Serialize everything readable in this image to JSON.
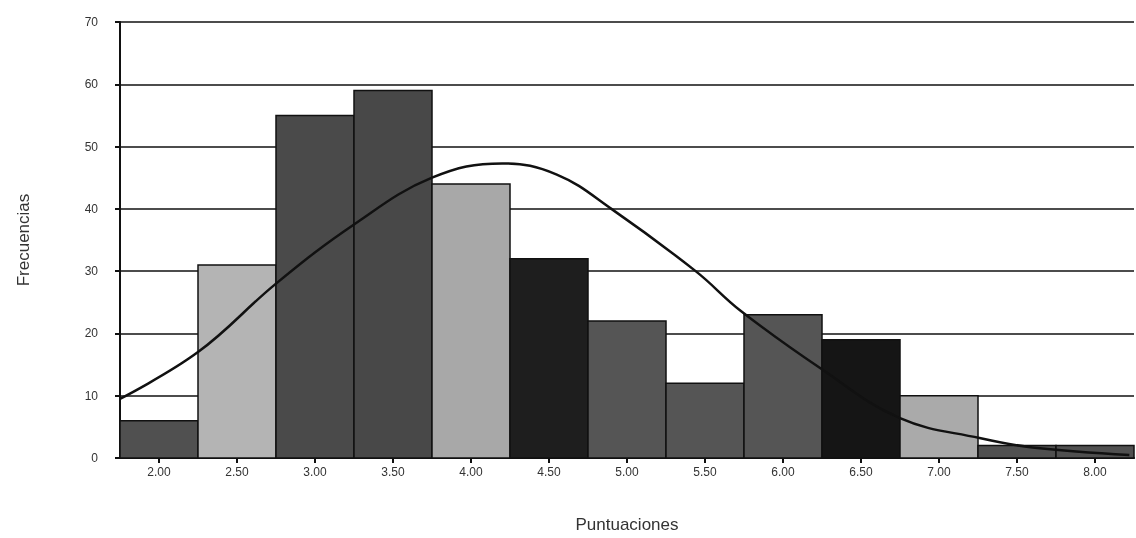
{
  "chart_data": {
    "type": "histogram",
    "xlabel": "Puntuaciones",
    "ylabel": "Frecuencias",
    "bins": [
      1.75,
      2.25,
      2.75,
      3.25,
      3.75,
      4.25,
      4.75,
      5.25,
      5.75,
      6.25,
      6.75,
      7.25,
      7.75,
      8.25
    ],
    "values": [
      6,
      31,
      55,
      59,
      44,
      32,
      22,
      12,
      23,
      19,
      10,
      2,
      2
    ],
    "colors": [
      "#505050",
      "#b4b4b4",
      "#4a4a4a",
      "#484848",
      "#a8a8a8",
      "#1e1e1e",
      "#555555",
      "#555555",
      "#555555",
      "#151515",
      "#aaaaaa",
      "#505050",
      "#505050"
    ],
    "series": [
      {
        "type": "line",
        "color": "#111111",
        "x": [
          1.75,
          2.25,
          2.75,
          3.25,
          3.75,
          4.2,
          4.55,
          4.9,
          5.44,
          5.73,
          6.24,
          6.75,
          7.26,
          7.6,
          8.22
        ],
        "values": [
          9.5,
          17,
          28,
          37.5,
          45,
          47.3,
          45.5,
          40,
          30,
          23.6,
          14.4,
          6.4,
          3.2,
          1.7,
          0.5
        ]
      }
    ],
    "xlim": [
      1.75,
      8.25
    ],
    "xticks": [
      {
        "value": 2,
        "label": "2.00"
      },
      {
        "value": 2.5,
        "label": "2.50"
      },
      {
        "value": 3,
        "label": "3.00"
      },
      {
        "value": 3.5,
        "label": "3.50"
      },
      {
        "value": 4,
        "label": "4.00"
      },
      {
        "value": 4.5,
        "label": "4.50"
      },
      {
        "value": 5,
        "label": "5.00"
      },
      {
        "value": 5.5,
        "label": "5.50"
      },
      {
        "value": 6,
        "label": "6.00"
      },
      {
        "value": 6.5,
        "label": "6.50"
      },
      {
        "value": 7,
        "label": "7.00"
      },
      {
        "value": 7.5,
        "label": "7.50"
      },
      {
        "value": 8,
        "label": "8.00"
      }
    ],
    "ylim": [
      0,
      70
    ],
    "yticks": [
      0,
      10,
      20,
      30,
      40,
      50,
      60,
      70
    ],
    "grid": "y",
    "marker": "none",
    "line_style": "solid"
  }
}
